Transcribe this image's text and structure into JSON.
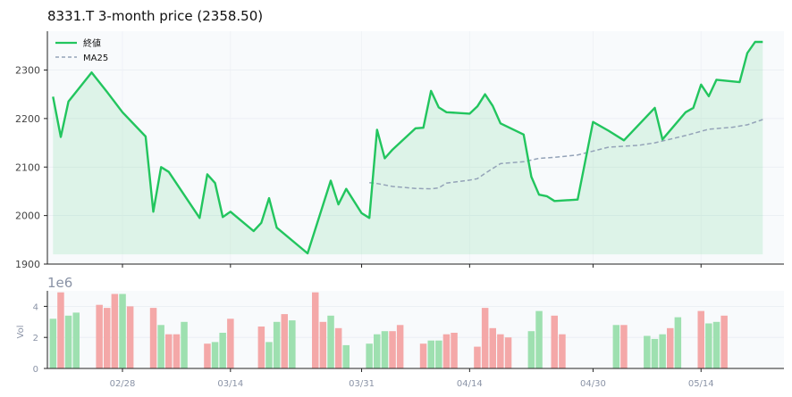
{
  "chart_data": [
    {
      "type": "line",
      "title": "8331.T  3-month price (2358.50)",
      "ylim": [
        1900,
        2380
      ],
      "yticks": [
        1900,
        2000,
        2100,
        2200,
        2300
      ],
      "grid": true,
      "legend_position": "top-left",
      "series": [
        {
          "name": "終値",
          "color": "#22c55e",
          "fill": "#22c55e",
          "points": [
            [
              "2025-02-19",
              2245
            ],
            [
              "2025-02-20",
              2162
            ],
            [
              "2025-02-21",
              2235
            ],
            [
              "2025-02-24",
              2295
            ],
            [
              "2025-02-26",
              2255
            ],
            [
              "2025-02-28",
              2213
            ],
            [
              "2025-03-03",
              2163
            ],
            [
              "2025-03-04",
              2008
            ],
            [
              "2025-03-05",
              2100
            ],
            [
              "2025-03-06",
              2090
            ],
            [
              "2025-03-10",
              1995
            ],
            [
              "2025-03-11",
              2085
            ],
            [
              "2025-03-12",
              2067
            ],
            [
              "2025-03-13",
              1997
            ],
            [
              "2025-03-14",
              2008
            ],
            [
              "2025-03-17",
              1968
            ],
            [
              "2025-03-18",
              1985
            ],
            [
              "2025-03-19",
              2036
            ],
            [
              "2025-03-20",
              1975
            ],
            [
              "2025-03-24",
              1922
            ],
            [
              "2025-03-27",
              2072
            ],
            [
              "2025-03-28",
              2023
            ],
            [
              "2025-03-29",
              2055
            ],
            [
              "2025-03-31",
              2005
            ],
            [
              "2025-04-01",
              1995
            ],
            [
              "2025-04-02",
              2177
            ],
            [
              "2025-04-03",
              2118
            ],
            [
              "2025-04-04",
              2136
            ],
            [
              "2025-04-07",
              2180
            ],
            [
              "2025-04-08",
              2181
            ],
            [
              "2025-04-09",
              2257
            ],
            [
              "2025-04-10",
              2223
            ],
            [
              "2025-04-11",
              2213
            ],
            [
              "2025-04-14",
              2210
            ],
            [
              "2025-04-15",
              2225
            ],
            [
              "2025-04-16",
              2250
            ],
            [
              "2025-04-17",
              2226
            ],
            [
              "2025-04-18",
              2190
            ],
            [
              "2025-04-21",
              2167
            ],
            [
              "2025-04-22",
              2080
            ],
            [
              "2025-04-23",
              2043
            ],
            [
              "2025-04-24",
              2040
            ],
            [
              "2025-04-25",
              2030
            ],
            [
              "2025-04-28",
              2033
            ],
            [
              "2025-04-30",
              2193
            ],
            [
              "2025-05-02",
              2175
            ],
            [
              "2025-05-04",
              2155
            ],
            [
              "2025-05-08",
              2222
            ],
            [
              "2025-05-09",
              2157
            ],
            [
              "2025-05-12",
              2213
            ],
            [
              "2025-05-13",
              2222
            ],
            [
              "2025-05-14",
              2270
            ],
            [
              "2025-05-15",
              2246
            ],
            [
              "2025-05-16",
              2280
            ],
            [
              "2025-05-19",
              2275
            ],
            [
              "2025-05-20",
              2335
            ],
            [
              "2025-05-21",
              2358
            ],
            [
              "2025-05-22",
              2358
            ]
          ]
        },
        {
          "name": "MA25",
          "color": "#94a3b8",
          "dashed": true,
          "points": [
            [
              "2025-04-01",
              2068
            ],
            [
              "2025-04-02",
              2066
            ],
            [
              "2025-04-04",
              2060
            ],
            [
              "2025-04-07",
              2056
            ],
            [
              "2025-04-09",
              2055
            ],
            [
              "2025-04-10",
              2057
            ],
            [
              "2025-04-11",
              2067
            ],
            [
              "2025-04-14",
              2073
            ],
            [
              "2025-04-15",
              2076
            ],
            [
              "2025-04-16",
              2087
            ],
            [
              "2025-04-18",
              2107
            ],
            [
              "2025-04-21",
              2111
            ],
            [
              "2025-04-23",
              2118
            ],
            [
              "2025-04-25",
              2120
            ],
            [
              "2025-04-28",
              2125
            ],
            [
              "2025-05-02",
              2141
            ],
            [
              "2025-05-06",
              2145
            ],
            [
              "2025-05-08",
              2150
            ],
            [
              "2025-05-12",
              2165
            ],
            [
              "2025-05-15",
              2178
            ],
            [
              "2025-05-18",
              2182
            ],
            [
              "2025-05-20",
              2187
            ],
            [
              "2025-05-22",
              2198
            ]
          ]
        }
      ]
    },
    {
      "type": "bar",
      "ylabel": "Vol",
      "scale_label": "1e6",
      "ylim": [
        0,
        5
      ],
      "yticks": [
        0,
        2,
        4
      ],
      "xtick_labels": [
        {
          "date": "2025-02-28",
          "label": "02/28"
        },
        {
          "date": "2025-03-14",
          "label": "03/14"
        },
        {
          "date": "2025-03-31",
          "label": "03/31"
        },
        {
          "date": "2025-04-14",
          "label": "04/14"
        },
        {
          "date": "2025-04-30",
          "label": "04/30"
        },
        {
          "date": "2025-05-14",
          "label": "05/14"
        }
      ],
      "up_color": "#9ee0b0",
      "down_color": "#f4a8a8",
      "bars": [
        [
          "2025-02-19",
          3.2,
          "up"
        ],
        [
          "2025-02-20",
          4.9,
          "down"
        ],
        [
          "2025-02-21",
          3.4,
          "up"
        ],
        [
          "2025-02-22",
          3.6,
          "up"
        ],
        [
          "2025-02-25",
          4.1,
          "down"
        ],
        [
          "2025-02-26",
          3.9,
          "down"
        ],
        [
          "2025-02-27",
          4.8,
          "down"
        ],
        [
          "2025-02-28",
          4.8,
          "up"
        ],
        [
          "2025-03-01",
          4.0,
          "down"
        ],
        [
          "2025-03-04",
          3.9,
          "down"
        ],
        [
          "2025-03-05",
          2.8,
          "up"
        ],
        [
          "2025-03-06",
          2.2,
          "down"
        ],
        [
          "2025-03-07",
          2.2,
          "down"
        ],
        [
          "2025-03-08",
          3.0,
          "up"
        ],
        [
          "2025-03-11",
          1.6,
          "down"
        ],
        [
          "2025-03-12",
          1.7,
          "up"
        ],
        [
          "2025-03-13",
          2.3,
          "up"
        ],
        [
          "2025-03-14",
          3.2,
          "down"
        ],
        [
          "2025-03-18",
          2.7,
          "down"
        ],
        [
          "2025-03-19",
          1.7,
          "up"
        ],
        [
          "2025-03-20",
          3.0,
          "up"
        ],
        [
          "2025-03-21",
          3.5,
          "down"
        ],
        [
          "2025-03-22",
          3.1,
          "up"
        ],
        [
          "2025-03-25",
          4.9,
          "down"
        ],
        [
          "2025-03-26",
          3.0,
          "down"
        ],
        [
          "2025-03-27",
          3.4,
          "up"
        ],
        [
          "2025-03-28",
          2.6,
          "down"
        ],
        [
          "2025-03-29",
          1.5,
          "up"
        ],
        [
          "2025-04-01",
          1.6,
          "up"
        ],
        [
          "2025-04-02",
          2.2,
          "up"
        ],
        [
          "2025-04-03",
          2.4,
          "up"
        ],
        [
          "2025-04-04",
          2.4,
          "down"
        ],
        [
          "2025-04-05",
          2.8,
          "down"
        ],
        [
          "2025-04-08",
          1.6,
          "down"
        ],
        [
          "2025-04-09",
          1.8,
          "up"
        ],
        [
          "2025-04-10",
          1.8,
          "up"
        ],
        [
          "2025-04-11",
          2.2,
          "down"
        ],
        [
          "2025-04-12",
          2.3,
          "down"
        ],
        [
          "2025-04-15",
          1.4,
          "down"
        ],
        [
          "2025-04-16",
          3.9,
          "down"
        ],
        [
          "2025-04-17",
          2.6,
          "down"
        ],
        [
          "2025-04-18",
          2.2,
          "down"
        ],
        [
          "2025-04-19",
          2.0,
          "down"
        ],
        [
          "2025-04-22",
          2.4,
          "up"
        ],
        [
          "2025-04-23",
          3.7,
          "up"
        ],
        [
          "2025-04-25",
          3.4,
          "down"
        ],
        [
          "2025-04-26",
          2.2,
          "down"
        ],
        [
          "2025-05-03",
          2.8,
          "up"
        ],
        [
          "2025-05-04",
          2.8,
          "down"
        ],
        [
          "2025-05-07",
          2.1,
          "up"
        ],
        [
          "2025-05-08",
          1.9,
          "up"
        ],
        [
          "2025-05-09",
          2.2,
          "up"
        ],
        [
          "2025-05-10",
          2.6,
          "down"
        ],
        [
          "2025-05-11",
          3.3,
          "up"
        ],
        [
          "2025-05-14",
          3.7,
          "down"
        ],
        [
          "2025-05-15",
          2.9,
          "up"
        ],
        [
          "2025-05-16",
          3.0,
          "up"
        ],
        [
          "2025-05-17",
          3.4,
          "down"
        ]
      ]
    }
  ]
}
